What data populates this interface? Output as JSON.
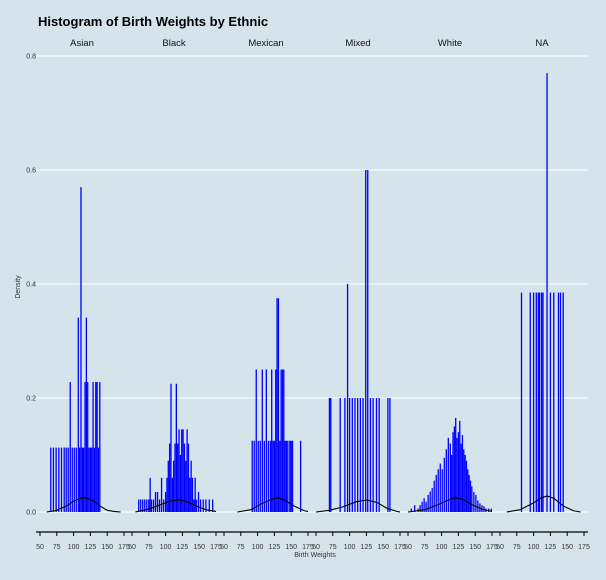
{
  "chart_data": {
    "type": "bar",
    "title": "Histogram of Birth Weights by Ethnic",
    "xlabel": "Birth Weights",
    "ylabel": "Density",
    "xlim": [
      50,
      175
    ],
    "ylim": [
      0,
      0.8
    ],
    "x_ticks": [
      50,
      75,
      100,
      125,
      150,
      175
    ],
    "y_ticks": [
      0.0,
      0.2,
      0.4,
      0.6,
      0.8
    ],
    "y_tick_labels": [
      "0.0",
      "0.2",
      "0.4",
      "0.6",
      "0.8"
    ],
    "bar_color": "#0000ff",
    "curve_color": "#000000",
    "background_color": "#d5e4eb",
    "grid": true,
    "legend": "none",
    "panels": [
      {
        "name": "Asian",
        "bars": [
          [
            66,
            0.113
          ],
          [
            70,
            0.113
          ],
          [
            74,
            0.113
          ],
          [
            78,
            0.113
          ],
          [
            82,
            0.113
          ],
          [
            86,
            0.113
          ],
          [
            89,
            0.113
          ],
          [
            92,
            0.113
          ],
          [
            95,
            0.228
          ],
          [
            98,
            0.113
          ],
          [
            101,
            0.113
          ],
          [
            104,
            0.113
          ],
          [
            107,
            0.341
          ],
          [
            109,
            0.113
          ],
          [
            111,
            0.57
          ],
          [
            113,
            0.113
          ],
          [
            115,
            0.113
          ],
          [
            117,
            0.228
          ],
          [
            119,
            0.341
          ],
          [
            121,
            0.228
          ],
          [
            123,
            0.113
          ],
          [
            125,
            0.113
          ],
          [
            127,
            0.113
          ],
          [
            129,
            0.228
          ],
          [
            131,
            0.113
          ],
          [
            133,
            0.228
          ],
          [
            135,
            0.228
          ],
          [
            137,
            0.113
          ],
          [
            139,
            0.228
          ]
        ],
        "density_curve": [
          [
            60,
            0.0
          ],
          [
            75,
            0.003
          ],
          [
            90,
            0.011
          ],
          [
            100,
            0.019
          ],
          [
            110,
            0.024
          ],
          [
            115,
            0.025
          ],
          [
            120,
            0.024
          ],
          [
            130,
            0.019
          ],
          [
            140,
            0.01
          ],
          [
            150,
            0.003
          ],
          [
            160,
            0.001
          ],
          [
            170,
            0.0
          ]
        ]
      },
      {
        "name": "Black",
        "bars": [
          [
            60,
            0.022
          ],
          [
            63,
            0.022
          ],
          [
            66,
            0.022
          ],
          [
            69,
            0.022
          ],
          [
            72,
            0.022
          ],
          [
            75,
            0.022
          ],
          [
            77,
            0.06
          ],
          [
            79,
            0.022
          ],
          [
            82,
            0.022
          ],
          [
            85,
            0.035
          ],
          [
            88,
            0.035
          ],
          [
            91,
            0.022
          ],
          [
            94,
            0.06
          ],
          [
            97,
            0.022
          ],
          [
            100,
            0.035
          ],
          [
            102,
            0.06
          ],
          [
            104,
            0.09
          ],
          [
            106,
            0.12
          ],
          [
            108,
            0.225
          ],
          [
            110,
            0.06
          ],
          [
            112,
            0.09
          ],
          [
            114,
            0.12
          ],
          [
            116,
            0.225
          ],
          [
            118,
            0.12
          ],
          [
            120,
            0.145
          ],
          [
            122,
            0.1
          ],
          [
            124,
            0.145
          ],
          [
            126,
            0.145
          ],
          [
            128,
            0.12
          ],
          [
            130,
            0.09
          ],
          [
            132,
            0.145
          ],
          [
            134,
            0.12
          ],
          [
            136,
            0.06
          ],
          [
            138,
            0.09
          ],
          [
            140,
            0.06
          ],
          [
            142,
            0.022
          ],
          [
            144,
            0.06
          ],
          [
            146,
            0.022
          ],
          [
            149,
            0.035
          ],
          [
            152,
            0.022
          ],
          [
            156,
            0.022
          ],
          [
            160,
            0.022
          ],
          [
            165,
            0.022
          ],
          [
            170,
            0.022
          ]
        ],
        "density_curve": [
          [
            55,
            0.0
          ],
          [
            75,
            0.005
          ],
          [
            95,
            0.014
          ],
          [
            110,
            0.02
          ],
          [
            120,
            0.021
          ],
          [
            130,
            0.019
          ],
          [
            145,
            0.011
          ],
          [
            160,
            0.004
          ],
          [
            175,
            0.001
          ]
        ]
      },
      {
        "name": "Mexican",
        "bars": [
          [
            92,
            0.125
          ],
          [
            95,
            0.125
          ],
          [
            98,
            0.25
          ],
          [
            101,
            0.125
          ],
          [
            104,
            0.125
          ],
          [
            107,
            0.25
          ],
          [
            110,
            0.125
          ],
          [
            113,
            0.25
          ],
          [
            116,
            0.125
          ],
          [
            119,
            0.125
          ],
          [
            121,
            0.25
          ],
          [
            123,
            0.125
          ],
          [
            125,
            0.125
          ],
          [
            127,
            0.25
          ],
          [
            129,
            0.375
          ],
          [
            131,
            0.375
          ],
          [
            133,
            0.125
          ],
          [
            135,
            0.25
          ],
          [
            137,
            0.25
          ],
          [
            139,
            0.25
          ],
          [
            141,
            0.125
          ],
          [
            143,
            0.125
          ],
          [
            145,
            0.125
          ],
          [
            148,
            0.125
          ],
          [
            150,
            0.125
          ],
          [
            152,
            0.125
          ],
          [
            164,
            0.125
          ]
        ],
        "density_curve": [
          [
            70,
            0.0
          ],
          [
            90,
            0.004
          ],
          [
            105,
            0.014
          ],
          [
            120,
            0.022
          ],
          [
            130,
            0.025
          ],
          [
            140,
            0.021
          ],
          [
            155,
            0.01
          ],
          [
            170,
            0.002
          ],
          [
            175,
            0.001
          ]
        ]
      },
      {
        "name": "Mixed",
        "bars": [
          [
            70,
            0.2
          ],
          [
            72,
            0.2
          ],
          [
            86,
            0.2
          ],
          [
            93,
            0.2
          ],
          [
            97,
            0.4
          ],
          [
            100,
            0.2
          ],
          [
            104,
            0.2
          ],
          [
            108,
            0.2
          ],
          [
            112,
            0.2
          ],
          [
            116,
            0.2
          ],
          [
            120,
            0.2
          ],
          [
            124,
            0.6
          ],
          [
            127,
            0.6
          ],
          [
            131,
            0.2
          ],
          [
            135,
            0.2
          ],
          [
            140,
            0.2
          ],
          [
            144,
            0.2
          ],
          [
            157,
            0.2
          ],
          [
            160,
            0.2
          ]
        ],
        "density_curve": [
          [
            50,
            0.0
          ],
          [
            70,
            0.003
          ],
          [
            90,
            0.009
          ],
          [
            110,
            0.018
          ],
          [
            125,
            0.021
          ],
          [
            140,
            0.017
          ],
          [
            155,
            0.007
          ],
          [
            170,
            0.001
          ],
          [
            175,
            0.0
          ]
        ]
      },
      {
        "name": "White",
        "bars": [
          [
            55,
            0.006
          ],
          [
            60,
            0.012
          ],
          [
            65,
            0.006
          ],
          [
            68,
            0.012
          ],
          [
            71,
            0.018
          ],
          [
            74,
            0.024
          ],
          [
            77,
            0.018
          ],
          [
            80,
            0.03
          ],
          [
            83,
            0.036
          ],
          [
            86,
            0.042
          ],
          [
            89,
            0.055
          ],
          [
            92,
            0.065
          ],
          [
            95,
            0.075
          ],
          [
            98,
            0.085
          ],
          [
            101,
            0.075
          ],
          [
            104,
            0.095
          ],
          [
            107,
            0.11
          ],
          [
            110,
            0.13
          ],
          [
            113,
            0.12
          ],
          [
            115,
            0.1
          ],
          [
            117,
            0.14
          ],
          [
            119,
            0.15
          ],
          [
            121,
            0.165
          ],
          [
            123,
            0.13
          ],
          [
            125,
            0.14
          ],
          [
            127,
            0.16
          ],
          [
            129,
            0.12
          ],
          [
            131,
            0.135
          ],
          [
            133,
            0.11
          ],
          [
            135,
            0.1
          ],
          [
            137,
            0.09
          ],
          [
            139,
            0.075
          ],
          [
            141,
            0.065
          ],
          [
            143,
            0.055
          ],
          [
            145,
            0.045
          ],
          [
            148,
            0.035
          ],
          [
            151,
            0.03
          ],
          [
            154,
            0.02
          ],
          [
            157,
            0.015
          ],
          [
            160,
            0.012
          ],
          [
            163,
            0.01
          ],
          [
            166,
            0.006
          ],
          [
            170,
            0.006
          ],
          [
            174,
            0.006
          ]
        ],
        "density_curve": [
          [
            50,
            0.0
          ],
          [
            75,
            0.004
          ],
          [
            95,
            0.013
          ],
          [
            110,
            0.021
          ],
          [
            120,
            0.025
          ],
          [
            130,
            0.023
          ],
          [
            145,
            0.013
          ],
          [
            160,
            0.005
          ],
          [
            175,
            0.001
          ]
        ]
      },
      {
        "name": "NA",
        "bars": [
          [
            82,
            0.385
          ],
          [
            95,
            0.385
          ],
          [
            100,
            0.385
          ],
          [
            104,
            0.385
          ],
          [
            107,
            0.385
          ],
          [
            109,
            0.385
          ],
          [
            112,
            0.385
          ],
          [
            114,
            0.385
          ],
          [
            120,
            0.77
          ],
          [
            125,
            0.385
          ],
          [
            130,
            0.385
          ],
          [
            137,
            0.385
          ],
          [
            140,
            0.385
          ],
          [
            144,
            0.385
          ]
        ],
        "density_curve": [
          [
            60,
            0.0
          ],
          [
            80,
            0.004
          ],
          [
            100,
            0.016
          ],
          [
            110,
            0.024
          ],
          [
            120,
            0.028
          ],
          [
            130,
            0.024
          ],
          [
            145,
            0.01
          ],
          [
            160,
            0.002
          ],
          [
            170,
            0.0
          ]
        ]
      }
    ]
  }
}
